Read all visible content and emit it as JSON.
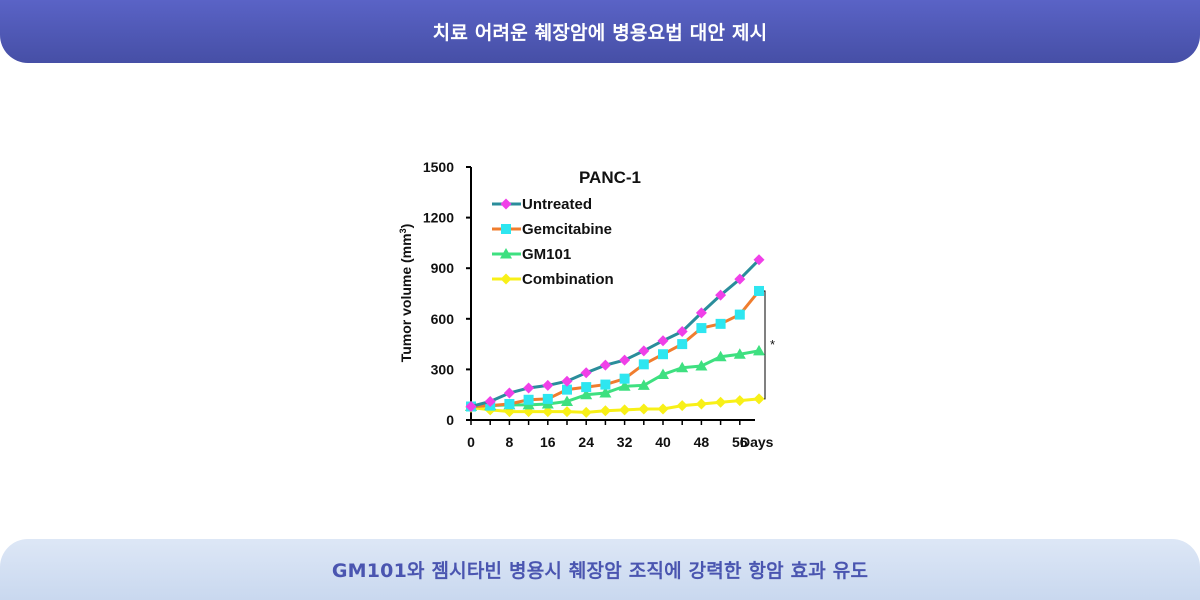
{
  "header": {
    "title": "치료 어려운 췌장암에 병용요법 대안 제시"
  },
  "footer": {
    "caption": "GM101와 젬시타빈 병용시 췌장암 조직에 강력한 항암 효과 유도"
  },
  "chart_data": {
    "type": "line",
    "title": "PANC-1",
    "xlabel": "Days",
    "ylabel": "Tumor volume (mm",
    "ylabel_sup": "3",
    "ylabel_close": ")",
    "xlim": [
      0,
      60
    ],
    "ylim": [
      0,
      1500
    ],
    "xticks": [
      "0",
      "8",
      "16",
      "24",
      "32",
      "40",
      "48",
      "56"
    ],
    "yticks": [
      "0",
      "300",
      "600",
      "900",
      "1200",
      "1500"
    ],
    "significance_label": "*",
    "legend_position": "top-left",
    "grid": false,
    "x": [
      0,
      4,
      8,
      12,
      16,
      20,
      24,
      28,
      32,
      36,
      40,
      44,
      48,
      52,
      56,
      60
    ],
    "series": [
      {
        "name": "Untreated",
        "line_color": "#2a8d9b",
        "marker_color": "#f040e8",
        "marker": "diamond",
        "values": [
          80,
          110,
          160,
          190,
          205,
          230,
          280,
          325,
          355,
          410,
          470,
          525,
          635,
          740,
          835,
          950
        ]
      },
      {
        "name": "Gemcitabine",
        "line_color": "#f07d2e",
        "marker_color": "#2ee6f0",
        "marker": "square",
        "values": [
          80,
          85,
          95,
          120,
          125,
          180,
          195,
          210,
          245,
          330,
          390,
          450,
          545,
          570,
          625,
          765
        ]
      },
      {
        "name": "GM101",
        "line_color": "#3ee080",
        "marker_color": "#3ee080",
        "marker": "triangle",
        "values": [
          80,
          85,
          90,
          90,
          95,
          110,
          150,
          160,
          200,
          205,
          270,
          310,
          320,
          375,
          390,
          410
        ]
      },
      {
        "name": "Combination",
        "line_color": "#f8f018",
        "marker_color": "#f8f018",
        "marker": "diamond",
        "values": [
          75,
          60,
          50,
          50,
          50,
          50,
          45,
          55,
          60,
          65,
          65,
          85,
          95,
          105,
          115,
          125
        ]
      }
    ]
  }
}
